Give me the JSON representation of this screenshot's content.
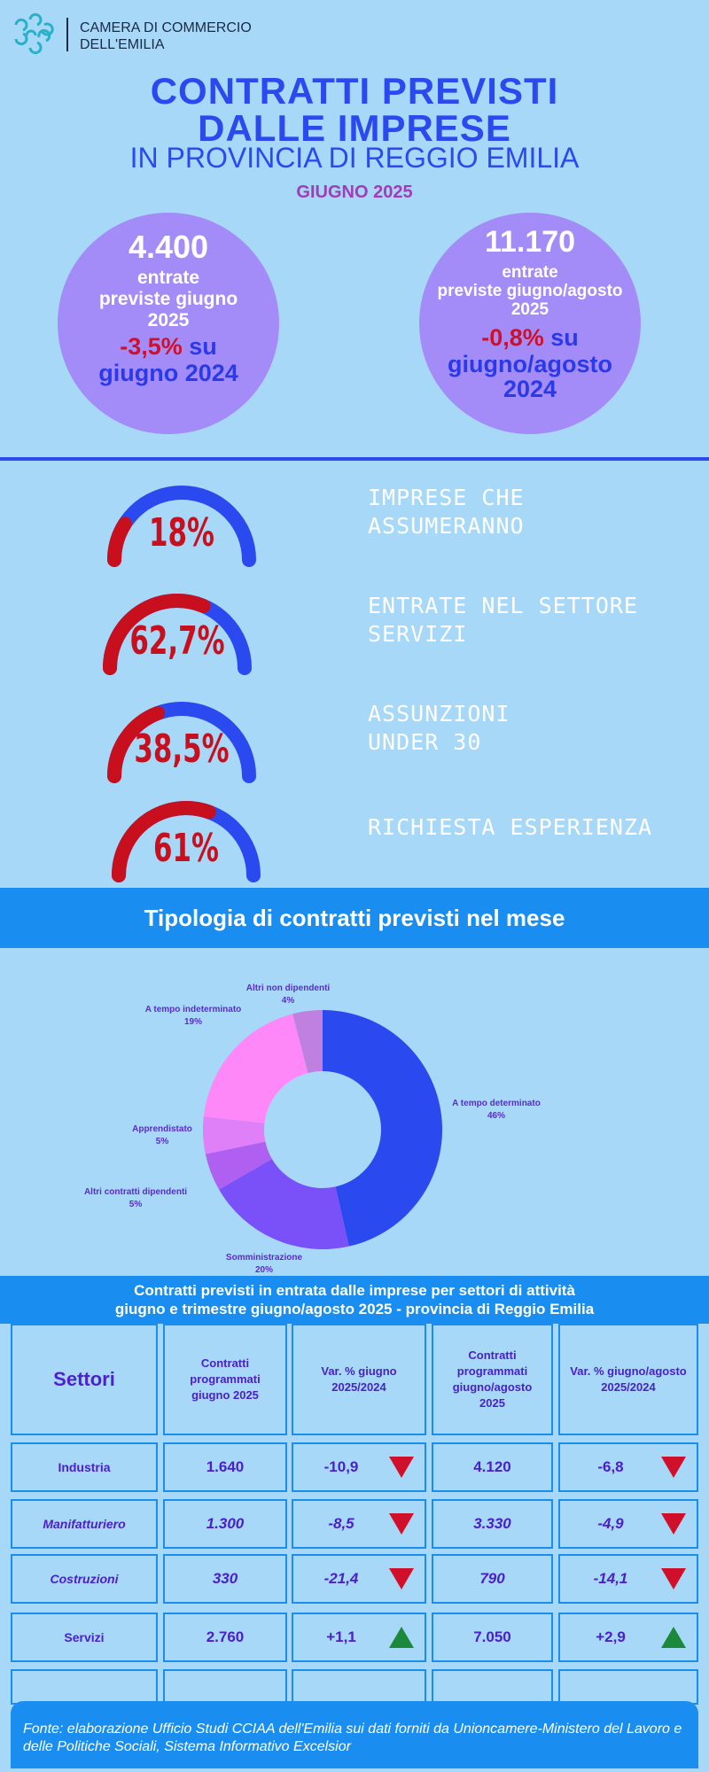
{
  "header": {
    "org_line1": "CAMERA DI COMMERCIO",
    "org_line2": "DELL'EMILIA"
  },
  "title": {
    "line1": "CONTRATTI PREVISTI",
    "line2": "DALLE IMPRESE",
    "subtitle": "IN PROVINCIA DI REGGIO EMILIA",
    "month": "GIUGNO  2025"
  },
  "stats": [
    {
      "number": "4.400",
      "line1": "entrate",
      "line2": "previste giugno",
      "line3": "2025",
      "change": "-3,5%",
      "su": " su",
      "ref": "giugno 2024"
    },
    {
      "number": "11.170",
      "line1": "entrate",
      "line2": "previste giugno/agosto",
      "line3": "2025",
      "change": "-0,8%",
      "su": " su",
      "ref1": "giugno/agosto",
      "ref2": "2024"
    }
  ],
  "gauges": [
    {
      "pct": "18%",
      "value": 18,
      "label1": "IMPRESE CHE",
      "label2": "ASSUMERANNO"
    },
    {
      "pct": "62,7%",
      "value": 62.7,
      "label1": "ENTRATE NEL SETTORE",
      "label2": "SERVIZI"
    },
    {
      "pct": "38,5%",
      "value": 38.5,
      "label1": "ASSUNZIONI",
      "label2": "UNDER 30"
    },
    {
      "pct": "61%",
      "value": 61,
      "label1": "RICHIESTA ESPERIENZA",
      "label2": ""
    }
  ],
  "colors": {
    "red": "#c80f1e",
    "blue": "#2a4af0"
  },
  "band_title": "Tipologia di contratti previsti nel mese",
  "chart_data": {
    "type": "pie",
    "title": "",
    "slices": [
      {
        "name": "A tempo determinato",
        "label": "46%",
        "value": 46,
        "color": "#2a4af0"
      },
      {
        "name": "Somministrazione",
        "label": "20%",
        "value": 20,
        "color": "#7a50f8"
      },
      {
        "name": "Altri contratti dipendenti",
        "label": "5%",
        "value": 5,
        "color": "#b060f0"
      },
      {
        "name": "Apprendistato",
        "label": "5%",
        "value": 5,
        "color": "#e080f8"
      },
      {
        "name": "A tempo indeterminato",
        "label": "19%",
        "value": 19,
        "color": "#ff88f8"
      },
      {
        "name": "Altri non dipendenti",
        "label": "4%",
        "value": 4,
        "color": "#c080e0"
      }
    ]
  },
  "table": {
    "title_line1": "Contratti previsti in entrata dalle imprese per settori di attività",
    "title_line2": "giugno e trimestre giugno/agosto 2025  -  provincia di Reggio Emilia",
    "headers": [
      "Settori",
      "Contratti programmati giugno 2025",
      "Var. % giugno 2025/2024",
      "Contratti programmati giugno/agosto 2025",
      "Var. % giugno/agosto 2025/2024"
    ],
    "rows": [
      {
        "sector": "Industria",
        "c1": "1.640",
        "v1": "-10,9",
        "t1": "down",
        "c2": "4.120",
        "v2": "-6,8",
        "t2": "down",
        "italic": false
      },
      {
        "sector": "Manifatturiero",
        "c1": "1.300",
        "v1": "-8,5",
        "t1": "down",
        "c2": "3.330",
        "v2": "-4,9",
        "t2": "down",
        "italic": true
      },
      {
        "sector": "Costruzioni",
        "c1": "330",
        "v1": "-21,4",
        "t1": "down",
        "c2": "790",
        "v2": "-14,1",
        "t2": "down",
        "italic": true
      },
      {
        "sector": "Servizi",
        "c1": "2.760",
        "v1": "+1,1",
        "t1": "up",
        "c2": "7.050",
        "v2": "+2,9",
        "t2": "up",
        "italic": false
      }
    ]
  },
  "footer": "Fonte: elaborazione Ufficio Studi CCIAA dell'Emilia sui dati forniti da Unioncamere-Ministero del Lavoro e delle Politiche Sociali, Sistema Informativo Excelsior"
}
